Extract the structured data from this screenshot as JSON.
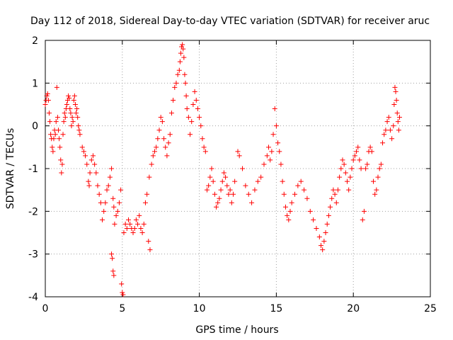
{
  "chart_data": {
    "type": "scatter",
    "title": "Day 112 of 2018, Sidereal Day-to-day VTEC variation (SDTVAR) for receiver aruc",
    "xlabel": "GPS time / hours",
    "ylabel": "SDTVAR / TECUs",
    "xlim": [
      0,
      25
    ],
    "ylim": [
      -4,
      2
    ],
    "xticks": [
      0,
      5,
      10,
      15,
      20,
      25
    ],
    "yticks": [
      -4,
      -3,
      -2,
      -1,
      0,
      1,
      2
    ],
    "grid": true,
    "marker": "+",
    "color": "#ff0000",
    "series": [
      {
        "name": "SDTVAR",
        "points": [
          [
            0.0,
            0.5
          ],
          [
            0.05,
            0.6
          ],
          [
            0.1,
            0.7
          ],
          [
            0.15,
            0.75
          ],
          [
            0.2,
            0.6
          ],
          [
            0.25,
            0.3
          ],
          [
            0.3,
            0.1
          ],
          [
            0.35,
            -0.2
          ],
          [
            0.4,
            -0.3
          ],
          [
            0.45,
            -0.5
          ],
          [
            0.5,
            -0.6
          ],
          [
            0.55,
            -0.3
          ],
          [
            0.6,
            -0.1
          ],
          [
            0.65,
            -0.2
          ],
          [
            0.7,
            0.1
          ],
          [
            0.75,
            0.9
          ],
          [
            0.8,
            0.2
          ],
          [
            0.85,
            -0.1
          ],
          [
            0.9,
            -0.3
          ],
          [
            0.95,
            -0.5
          ],
          [
            1.0,
            -0.8
          ],
          [
            1.05,
            -1.1
          ],
          [
            1.1,
            -0.9
          ],
          [
            1.15,
            -0.2
          ],
          [
            1.2,
            0.1
          ],
          [
            1.25,
            0.3
          ],
          [
            1.3,
            0.2
          ],
          [
            1.35,
            0.4
          ],
          [
            1.4,
            0.5
          ],
          [
            1.45,
            0.6
          ],
          [
            1.5,
            0.7
          ],
          [
            1.55,
            0.65
          ],
          [
            1.6,
            0.4
          ],
          [
            1.65,
            0.3
          ],
          [
            1.7,
            0.0
          ],
          [
            1.75,
            0.2
          ],
          [
            1.8,
            0.1
          ],
          [
            1.85,
            0.6
          ],
          [
            1.9,
            0.7
          ],
          [
            1.95,
            0.5
          ],
          [
            2.0,
            0.3
          ],
          [
            2.05,
            0.4
          ],
          [
            2.1,
            0.2
          ],
          [
            2.15,
            0.0
          ],
          [
            2.2,
            -0.1
          ],
          [
            2.25,
            -0.2
          ],
          [
            2.4,
            -0.5
          ],
          [
            2.5,
            -0.6
          ],
          [
            2.6,
            -0.7
          ],
          [
            2.7,
            -0.9
          ],
          [
            2.8,
            -1.3
          ],
          [
            2.85,
            -1.4
          ],
          [
            2.9,
            -1.1
          ],
          [
            3.0,
            -0.8
          ],
          [
            3.1,
            -0.7
          ],
          [
            3.2,
            -0.9
          ],
          [
            3.3,
            -1.1
          ],
          [
            3.4,
            -1.4
          ],
          [
            3.5,
            -1.6
          ],
          [
            3.6,
            -1.8
          ],
          [
            3.7,
            -2.2
          ],
          [
            3.8,
            -2.0
          ],
          [
            3.9,
            -1.8
          ],
          [
            4.0,
            -1.5
          ],
          [
            4.1,
            -1.4
          ],
          [
            4.2,
            -1.2
          ],
          [
            4.3,
            -1.0
          ],
          [
            4.4,
            -1.7
          ],
          [
            4.45,
            -1.9
          ],
          [
            4.3,
            -3.0
          ],
          [
            4.35,
            -3.1
          ],
          [
            4.4,
            -3.4
          ],
          [
            4.45,
            -3.5
          ],
          [
            4.5,
            -2.3
          ],
          [
            4.6,
            -2.1
          ],
          [
            4.7,
            -2.0
          ],
          [
            4.8,
            -1.8
          ],
          [
            4.9,
            -1.5
          ],
          [
            4.95,
            -3.7
          ],
          [
            5.0,
            -3.9
          ],
          [
            5.05,
            -3.95
          ],
          [
            5.1,
            -2.5
          ],
          [
            5.2,
            -2.3
          ],
          [
            5.3,
            -2.4
          ],
          [
            5.4,
            -2.2
          ],
          [
            5.5,
            -2.3
          ],
          [
            5.6,
            -2.4
          ],
          [
            5.7,
            -2.5
          ],
          [
            5.8,
            -2.4
          ],
          [
            5.9,
            -2.2
          ],
          [
            6.0,
            -2.3
          ],
          [
            6.1,
            -2.1
          ],
          [
            6.2,
            -2.4
          ],
          [
            6.3,
            -2.5
          ],
          [
            6.4,
            -2.3
          ],
          [
            6.5,
            -1.8
          ],
          [
            6.6,
            -1.6
          ],
          [
            6.7,
            -2.7
          ],
          [
            6.8,
            -2.9
          ],
          [
            6.75,
            -1.2
          ],
          [
            6.9,
            -0.9
          ],
          [
            7.0,
            -0.7
          ],
          [
            7.1,
            -0.6
          ],
          [
            7.2,
            -0.5
          ],
          [
            7.3,
            -0.3
          ],
          [
            7.4,
            -0.1
          ],
          [
            7.5,
            0.2
          ],
          [
            7.6,
            0.1
          ],
          [
            7.7,
            -0.3
          ],
          [
            7.8,
            -0.5
          ],
          [
            7.9,
            -0.7
          ],
          [
            8.0,
            -0.4
          ],
          [
            8.1,
            -0.2
          ],
          [
            8.2,
            0.3
          ],
          [
            8.3,
            0.6
          ],
          [
            8.4,
            0.9
          ],
          [
            8.5,
            1.0
          ],
          [
            8.6,
            1.2
          ],
          [
            8.7,
            1.3
          ],
          [
            8.75,
            1.5
          ],
          [
            8.8,
            1.7
          ],
          [
            8.85,
            1.85
          ],
          [
            8.9,
            1.9
          ],
          [
            8.95,
            1.8
          ],
          [
            9.0,
            1.6
          ],
          [
            9.05,
            1.2
          ],
          [
            9.1,
            1.0
          ],
          [
            9.15,
            0.7
          ],
          [
            9.2,
            0.4
          ],
          [
            9.3,
            0.2
          ],
          [
            9.4,
            -0.2
          ],
          [
            9.5,
            0.1
          ],
          [
            9.6,
            0.5
          ],
          [
            9.7,
            0.8
          ],
          [
            9.8,
            0.6
          ],
          [
            9.9,
            0.4
          ],
          [
            10.0,
            0.2
          ],
          [
            10.1,
            0.0
          ],
          [
            10.2,
            -0.3
          ],
          [
            10.3,
            -0.5
          ],
          [
            10.4,
            -0.6
          ],
          [
            10.5,
            -1.5
          ],
          [
            10.6,
            -1.4
          ],
          [
            10.7,
            -1.2
          ],
          [
            10.8,
            -1.0
          ],
          [
            10.9,
            -1.3
          ],
          [
            11.0,
            -1.6
          ],
          [
            11.1,
            -1.9
          ],
          [
            11.2,
            -1.8
          ],
          [
            11.3,
            -1.7
          ],
          [
            11.4,
            -1.5
          ],
          [
            11.5,
            -1.3
          ],
          [
            11.6,
            -1.1
          ],
          [
            11.7,
            -1.2
          ],
          [
            11.8,
            -1.4
          ],
          [
            11.9,
            -1.6
          ],
          [
            12.0,
            -1.5
          ],
          [
            12.1,
            -1.8
          ],
          [
            12.2,
            -1.6
          ],
          [
            12.3,
            -1.3
          ],
          [
            12.5,
            -0.6
          ],
          [
            12.6,
            -0.7
          ],
          [
            12.8,
            -1.0
          ],
          [
            13.0,
            -1.4
          ],
          [
            13.2,
            -1.6
          ],
          [
            13.4,
            -1.8
          ],
          [
            13.6,
            -1.5
          ],
          [
            13.8,
            -1.3
          ],
          [
            14.0,
            -1.2
          ],
          [
            14.2,
            -0.9
          ],
          [
            14.4,
            -0.7
          ],
          [
            14.5,
            -0.5
          ],
          [
            14.6,
            -0.8
          ],
          [
            14.7,
            -0.6
          ],
          [
            14.8,
            -0.2
          ],
          [
            14.9,
            0.4
          ],
          [
            15.0,
            0.0
          ],
          [
            15.1,
            -0.4
          ],
          [
            15.2,
            -0.6
          ],
          [
            15.3,
            -0.9
          ],
          [
            15.4,
            -1.3
          ],
          [
            15.5,
            -1.6
          ],
          [
            15.6,
            -1.9
          ],
          [
            15.7,
            -2.1
          ],
          [
            15.8,
            -2.2
          ],
          [
            15.9,
            -2.0
          ],
          [
            16.0,
            -1.8
          ],
          [
            16.2,
            -1.6
          ],
          [
            16.4,
            -1.4
          ],
          [
            16.6,
            -1.3
          ],
          [
            16.8,
            -1.5
          ],
          [
            17.0,
            -1.7
          ],
          [
            17.2,
            -2.0
          ],
          [
            17.4,
            -2.2
          ],
          [
            17.6,
            -2.4
          ],
          [
            17.8,
            -2.6
          ],
          [
            17.9,
            -2.8
          ],
          [
            18.0,
            -2.9
          ],
          [
            18.1,
            -2.7
          ],
          [
            18.2,
            -2.5
          ],
          [
            18.3,
            -2.3
          ],
          [
            18.4,
            -2.1
          ],
          [
            18.5,
            -1.9
          ],
          [
            18.6,
            -1.7
          ],
          [
            18.7,
            -1.5
          ],
          [
            18.8,
            -1.6
          ],
          [
            18.9,
            -1.8
          ],
          [
            19.0,
            -1.5
          ],
          [
            19.1,
            -1.2
          ],
          [
            19.2,
            -1.0
          ],
          [
            19.3,
            -0.8
          ],
          [
            19.4,
            -0.9
          ],
          [
            19.5,
            -1.1
          ],
          [
            19.6,
            -1.3
          ],
          [
            19.7,
            -1.5
          ],
          [
            19.8,
            -1.2
          ],
          [
            19.9,
            -1.0
          ],
          [
            20.0,
            -0.8
          ],
          [
            20.1,
            -0.7
          ],
          [
            20.2,
            -0.6
          ],
          [
            20.3,
            -0.5
          ],
          [
            20.4,
            -0.8
          ],
          [
            20.5,
            -1.0
          ],
          [
            20.6,
            -2.2
          ],
          [
            20.7,
            -2.0
          ],
          [
            20.8,
            -1.0
          ],
          [
            20.9,
            -0.9
          ],
          [
            21.0,
            -0.6
          ],
          [
            21.1,
            -0.5
          ],
          [
            21.2,
            -0.6
          ],
          [
            21.3,
            -1.3
          ],
          [
            21.4,
            -1.6
          ],
          [
            21.5,
            -1.5
          ],
          [
            21.6,
            -1.2
          ],
          [
            21.7,
            -1.0
          ],
          [
            21.8,
            -0.9
          ],
          [
            21.9,
            -0.4
          ],
          [
            22.0,
            -0.2
          ],
          [
            22.1,
            -0.1
          ],
          [
            22.2,
            0.1
          ],
          [
            22.3,
            0.2
          ],
          [
            22.4,
            -0.1
          ],
          [
            22.5,
            -0.3
          ],
          [
            22.6,
            0.0
          ],
          [
            22.65,
            0.5
          ],
          [
            22.7,
            0.9
          ],
          [
            22.75,
            0.8
          ],
          [
            22.8,
            0.6
          ],
          [
            22.85,
            0.3
          ],
          [
            22.9,
            0.1
          ],
          [
            22.95,
            -0.1
          ],
          [
            23.0,
            0.2
          ]
        ]
      }
    ]
  }
}
